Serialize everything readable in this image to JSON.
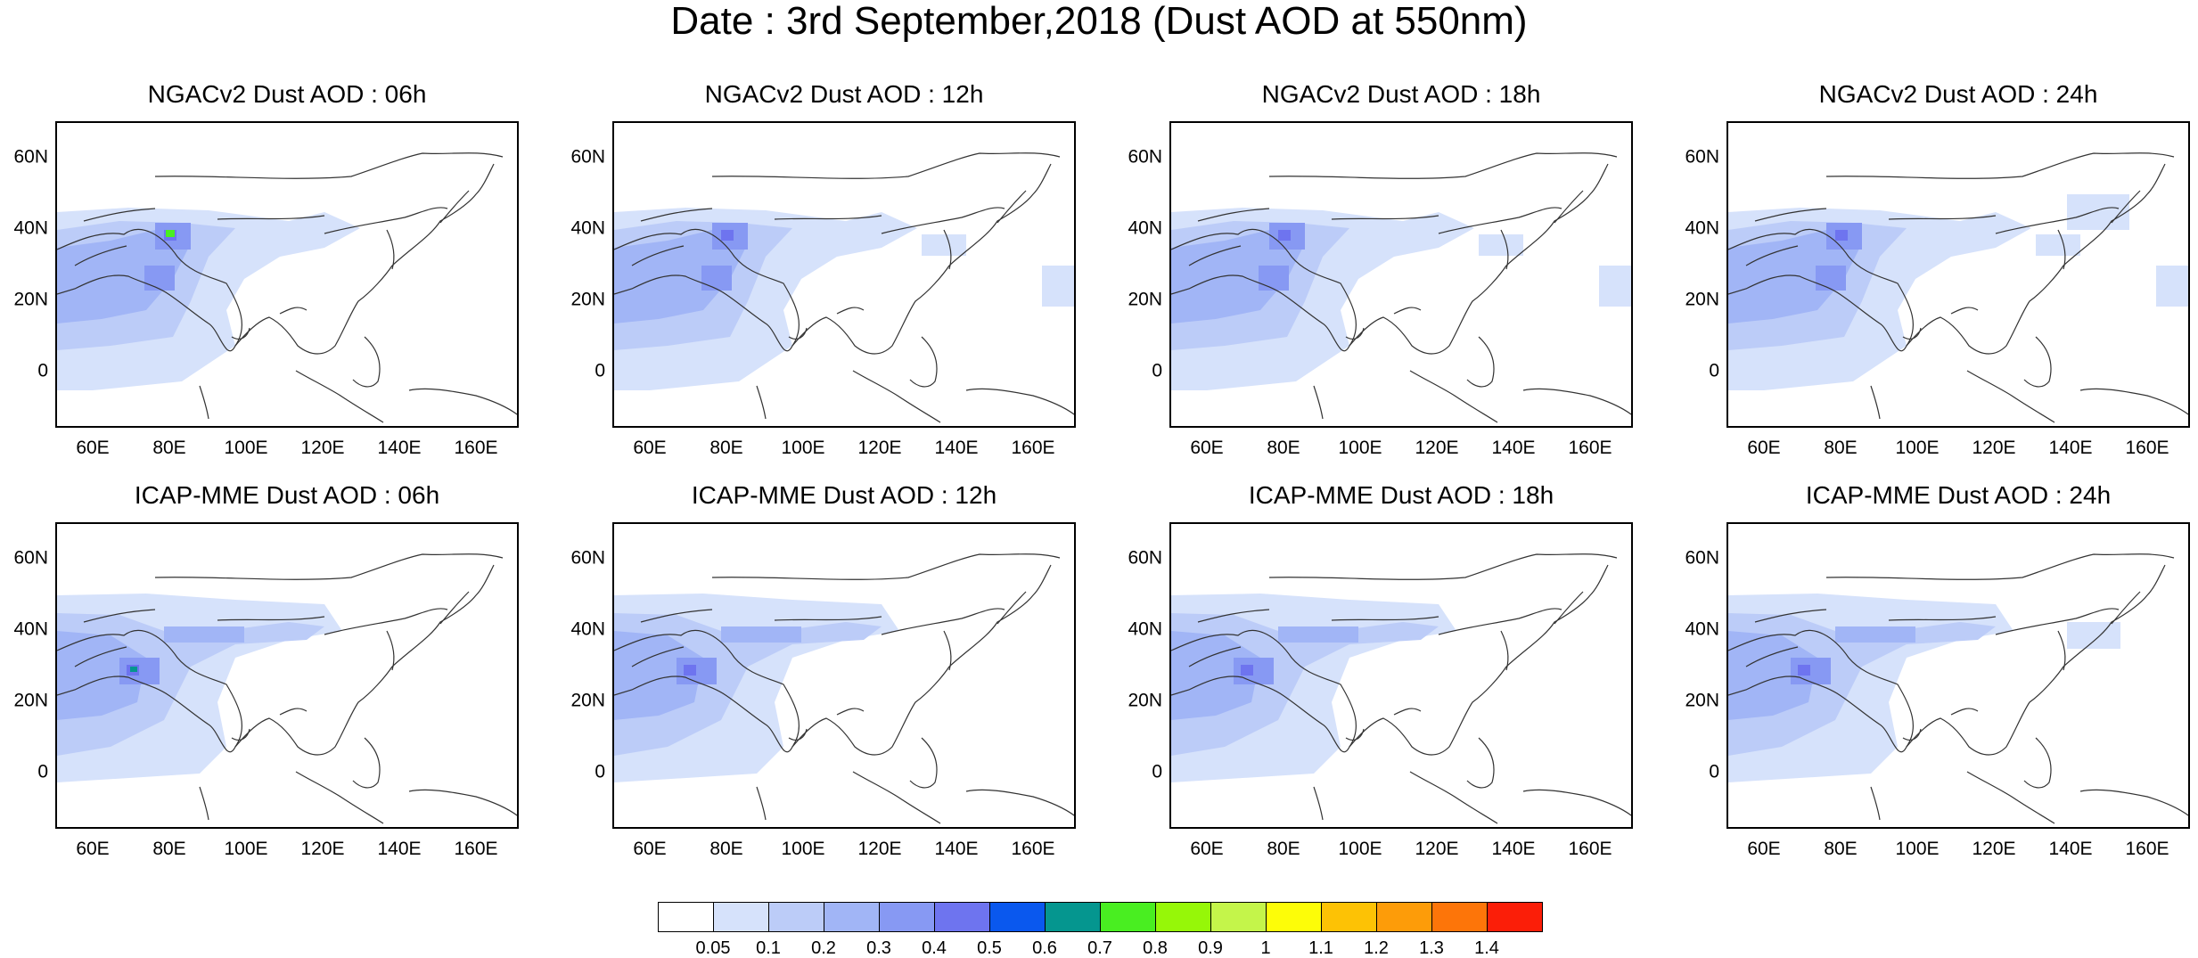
{
  "title": "Date : 3rd September,2018 (Dust AOD at 550nm)",
  "panels": [
    {
      "title": "NGACv2 Dust AOD : 06h",
      "model": "NGACv2"
    },
    {
      "title": "NGACv2 Dust AOD : 12h",
      "model": "NGACv2"
    },
    {
      "title": "NGACv2 Dust AOD : 18h",
      "model": "NGACv2"
    },
    {
      "title": "NGACv2 Dust AOD : 24h",
      "model": "NGACv2"
    },
    {
      "title": "ICAP-MME Dust AOD : 06h",
      "model": "ICAP-MME"
    },
    {
      "title": "ICAP-MME Dust AOD : 12h",
      "model": "ICAP-MME"
    },
    {
      "title": "ICAP-MME Dust AOD : 18h",
      "model": "ICAP-MME"
    },
    {
      "title": "ICAP-MME Dust AOD : 24h",
      "model": "ICAP-MME"
    }
  ],
  "axes": {
    "lat_ticks": [
      "60N",
      "40N",
      "20N",
      "0"
    ],
    "lon_ticks": [
      "60E",
      "80E",
      "100E",
      "120E",
      "140E",
      "160E"
    ]
  },
  "colorbar": {
    "labels": [
      "0.05",
      "0.1",
      "0.2",
      "0.3",
      "0.4",
      "0.5",
      "0.6",
      "0.7",
      "0.8",
      "0.9",
      "1",
      "1.1",
      "1.2",
      "1.3",
      "1.4"
    ],
    "colors": [
      "#ffffff",
      "#d6e2fb",
      "#bcccf8",
      "#a1b5f6",
      "#8799f3",
      "#6e74ef",
      "#0a58ee",
      "#05968f",
      "#49ee21",
      "#96f708",
      "#c4f54a",
      "#fdfd08",
      "#fdc205",
      "#fd9c09",
      "#fd7509",
      "#fb1e08"
    ]
  }
}
